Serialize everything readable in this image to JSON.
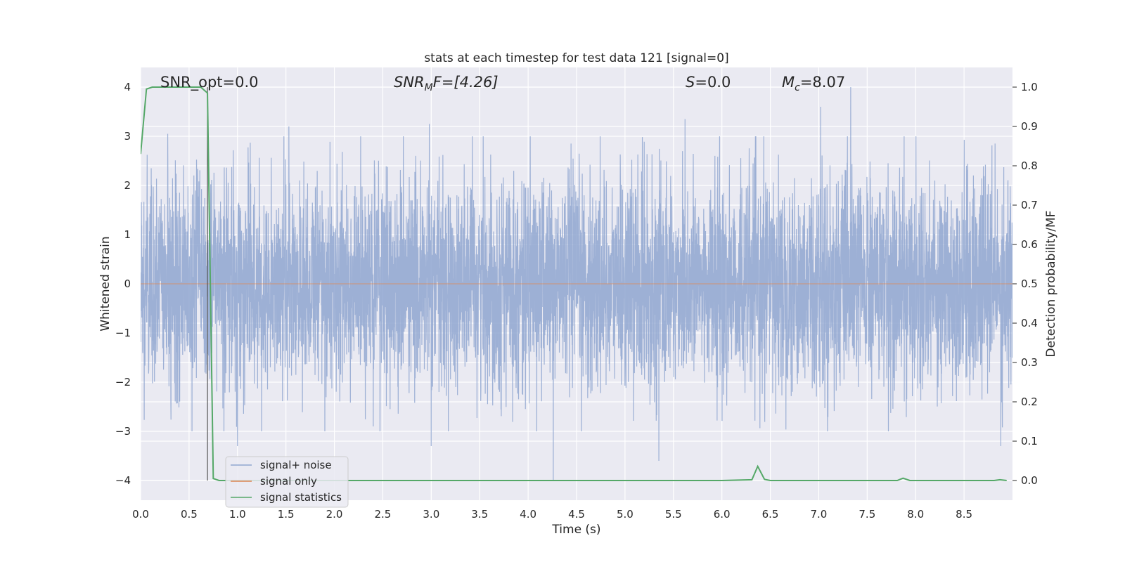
{
  "chart_data": {
    "type": "line",
    "title": "stats at each timestep for test data 121 [signal=0]",
    "xlabel": "Time (s)",
    "ylabel_left": "Whitened strain",
    "ylabel_right": "Detection probability/MF",
    "xlim": [
      0.0,
      9.0
    ],
    "ylim_left": [
      -4.4,
      4.4
    ],
    "ylim_right": [
      -0.05,
      1.05
    ],
    "x_ticks": [
      0.0,
      0.5,
      1.0,
      1.5,
      2.0,
      2.5,
      3.0,
      3.5,
      4.0,
      4.5,
      5.0,
      5.5,
      6.0,
      6.5,
      7.0,
      7.5,
      8.0,
      8.5
    ],
    "x_tick_labels": [
      "0.0",
      "0.5",
      "1.0",
      "1.5",
      "2.0",
      "2.5",
      "3.0",
      "3.5",
      "4.0",
      "4.5",
      "5.0",
      "5.5",
      "6.0",
      "6.5",
      "7.0",
      "7.5",
      "8.0",
      "8.5"
    ],
    "y_ticks_left": [
      -4,
      -3,
      -2,
      -1,
      0,
      1,
      2,
      3,
      4
    ],
    "y_tick_labels_left": [
      "−4",
      "−3",
      "−2",
      "−1",
      "0",
      "1",
      "2",
      "3",
      "4"
    ],
    "y_ticks_right": [
      0.0,
      0.1,
      0.2,
      0.3,
      0.4,
      0.5,
      0.6,
      0.7,
      0.8,
      0.9,
      1.0
    ],
    "y_tick_labels_right": [
      "0.0",
      "0.1",
      "0.2",
      "0.3",
      "0.4",
      "0.5",
      "0.6",
      "0.7",
      "0.8",
      "0.9",
      "1.0"
    ],
    "grid": true,
    "legend_placement": "lower-left",
    "annotations": {
      "snr_opt": "SNR_opt=0.0",
      "snr_mf_sym": "SNR",
      "snr_mf_sub": "M",
      "snr_mf_rest": "F=[4.26]",
      "s_sym": "S",
      "s_rest": "=0.0",
      "mc_sym": "M",
      "mc_sub": "c",
      "mc_rest": "=8.07"
    },
    "vertical_line_x": 0.69,
    "series": [
      {
        "name": "signal+ noise",
        "color": "#8fa6d0",
        "axis": "left",
        "kind": "noise",
        "sample_rate": 2048,
        "amplitude_sigma": 1.05,
        "notable_peaks": [
          {
            "x": 0.28,
            "y": 3.05
          },
          {
            "x": 1.53,
            "y": 3.2
          },
          {
            "x": 2.98,
            "y": 3.25
          },
          {
            "x": 5.62,
            "y": 3.35
          },
          {
            "x": 7.02,
            "y": 3.6
          },
          {
            "x": 7.33,
            "y": 4.0
          },
          {
            "x": 4.26,
            "y": -4.0
          },
          {
            "x": 5.35,
            "y": -3.6
          },
          {
            "x": 8.88,
            "y": -3.3
          },
          {
            "x": 1.0,
            "y": -3.3
          },
          {
            "x": 3.0,
            "y": -3.3
          }
        ]
      },
      {
        "name": "signal only",
        "color": "#dd8452",
        "axis": "left",
        "kind": "flat",
        "values": [
          0.0,
          0.0
        ]
      },
      {
        "name": "signal statistics",
        "color": "#55a868",
        "axis": "right",
        "kind": "line",
        "x": [
          0.0,
          0.06,
          0.12,
          0.25,
          0.5,
          0.62,
          0.69,
          0.75,
          0.81,
          1.0,
          2.0,
          3.0,
          4.0,
          5.0,
          6.0,
          6.31,
          6.37,
          6.44,
          6.5,
          7.0,
          7.81,
          7.87,
          7.94,
          8.5,
          8.81,
          8.87,
          8.94
        ],
        "y": [
          0.83,
          0.995,
          1.0,
          1.0,
          1.0,
          1.0,
          0.985,
          0.005,
          0.0,
          0.0,
          0.0,
          0.0,
          0.0,
          0.0,
          0.0,
          0.002,
          0.036,
          0.003,
          0.0,
          0.0,
          0.0,
          0.006,
          0.0,
          0.0,
          0.0,
          0.002,
          0.0
        ]
      }
    ]
  }
}
